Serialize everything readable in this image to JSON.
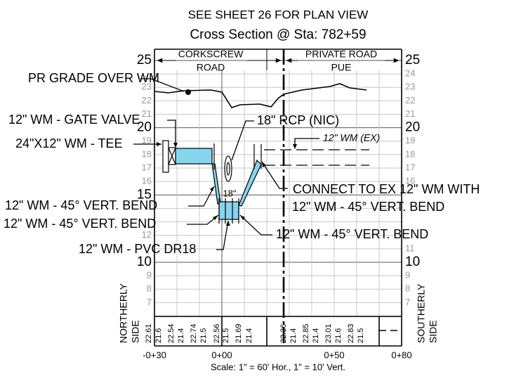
{
  "title": "SEE SHEET 26 FOR PLAN VIEW",
  "subtitle": "Cross Section @ Sta: 782+59",
  "header": {
    "left": [
      "CORKSCREW",
      "ROAD"
    ],
    "right": [
      "PRIVATE ROAD",
      "PUE"
    ]
  },
  "elevations_left": [
    25,
    23,
    22,
    21,
    20,
    19,
    18,
    17,
    16,
    15,
    12,
    10,
    9,
    8,
    7
  ],
  "elevations_right": [
    25,
    24,
    23,
    22,
    21,
    20,
    19,
    18,
    17,
    16,
    11,
    10,
    9,
    8,
    7
  ],
  "callouts": {
    "pr_grade": "PR GRADE OVER WM",
    "gate_valve": "12\" WM - GATE VALVE",
    "tee": "24\"X12\" WM - TEE",
    "rcp": "18\" RCP (NIC)",
    "rcp_size": "18\"",
    "existing_wm": "12\" WM (EX)",
    "connect": "CONNECT TO EX 12\" WM WITH",
    "connect_bend": "12\" WM - 45° VERT. BEND",
    "bend_upper_left": "12\" WM - 45° VERT. BEND",
    "bend_lower_left": "12\" WM - 45° VERT. BEND",
    "bend_right": "12\" WM - 45° VERT. BEND",
    "pvc": "12\" WM - PVC DR18"
  },
  "sides": {
    "left": [
      "NORTHERLY",
      "SIDE"
    ],
    "right": [
      "SOUTHERLY",
      "SIDE"
    ]
  },
  "profile_elevations": [
    "22.61",
    "21.6",
    "22.54",
    "21.4",
    "22.74",
    "21.5",
    "22.56",
    "21.5",
    "21.69",
    "21.4",
    "22.36",
    "21.4",
    "22.85",
    "21.4",
    "23.01",
    "21.6",
    "22.83",
    "21.5"
  ],
  "stations": [
    "-0+30",
    "0+00",
    "0+50",
    "0+80"
  ],
  "scale": "Scale: 1\" = 60' Hor., 1\" =  10' Vert."
}
